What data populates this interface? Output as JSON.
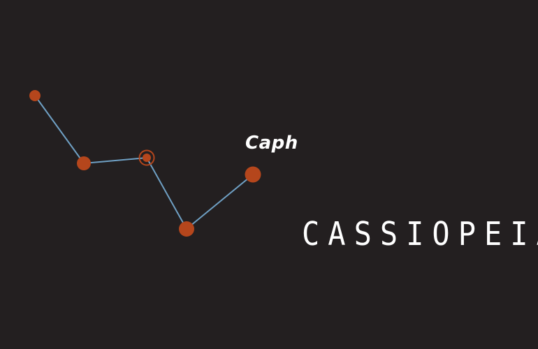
{
  "constellation": {
    "name": "CASSIOPEIA",
    "highlighted_star_label": "Caph"
  },
  "colors": {
    "background": "#231f20",
    "star": "#b5461c",
    "line": "#6fa0c4",
    "text": "#ffffff"
  }
}
